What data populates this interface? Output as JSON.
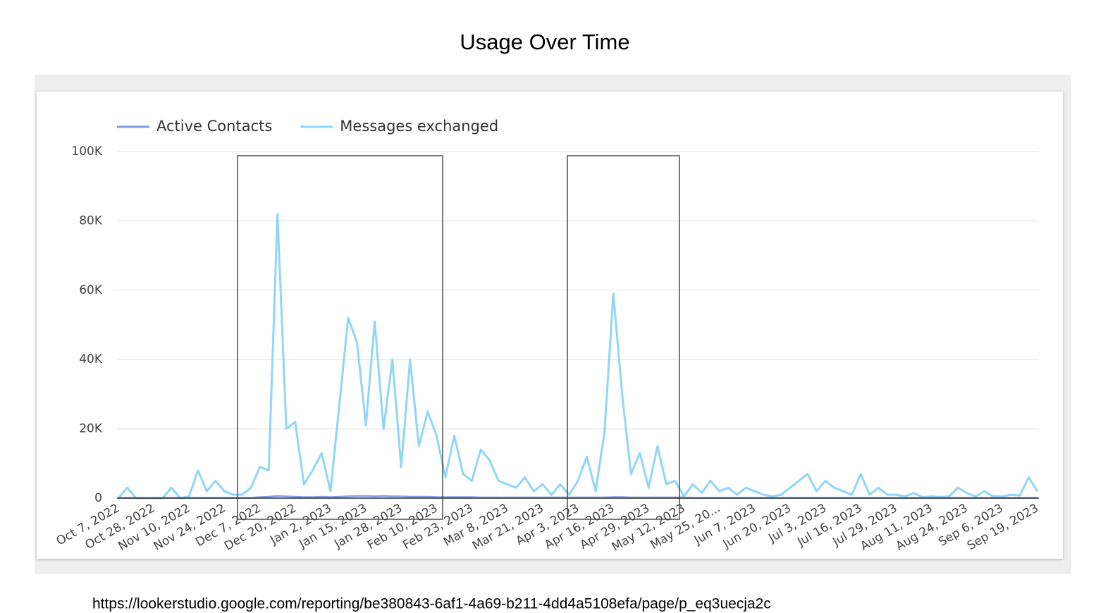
{
  "chart_data": {
    "type": "line",
    "title": "Usage Over Time",
    "source": "https://lookerstudio.google.com/reporting/be380843-6af1-4a69-b211-4dd4a5108efa/page/p_eq3uecja2c",
    "legend": "top-left",
    "grid": true,
    "ylim": [
      0,
      100000
    ],
    "yticks": [
      0,
      {
        "value": 20000,
        "label": "20K"
      },
      {
        "value": 40000,
        "label": "40K"
      },
      {
        "value": 60000,
        "label": "60K"
      },
      {
        "value": 80000,
        "label": "80K"
      },
      {
        "value": 100000,
        "label": "100K"
      }
    ],
    "categories": [
      "Oct 7, 2022",
      null,
      null,
      null,
      "Oct 28, 2022",
      null,
      null,
      null,
      "Nov 10, 2022",
      null,
      null,
      null,
      "Nov 24, 2022",
      null,
      null,
      null,
      "Dec 7, 2022",
      null,
      null,
      null,
      "Dec 20, 2022",
      null,
      null,
      null,
      "Jan 2, 2023",
      null,
      null,
      null,
      "Jan 15, 2023",
      null,
      null,
      null,
      "Jan 28, 2023",
      null,
      null,
      null,
      "Feb 10, 2023",
      null,
      null,
      null,
      "Feb 23, 2023",
      null,
      null,
      null,
      "Mar 8, 2023",
      null,
      null,
      null,
      "Mar 21, 2023",
      null,
      null,
      null,
      "Apr 3, 2023",
      null,
      null,
      null,
      "Apr 16, 2023",
      null,
      null,
      null,
      "Apr 29, 2023",
      null,
      null,
      null,
      "May 12, 2023",
      null,
      null,
      null,
      "May 25, 20...",
      null,
      null,
      null,
      "Jun 7, 2023",
      null,
      null,
      null,
      "Jun 20, 2023",
      null,
      null,
      null,
      "Jul 3, 2023",
      null,
      null,
      null,
      "Jul 16, 2023",
      null,
      null,
      null,
      "Jul 29, 2023",
      null,
      null,
      null,
      "Aug 11, 2023",
      null,
      null,
      null,
      "Aug 24, 2023",
      null,
      null,
      null,
      "Sep 6, 2023",
      null,
      null,
      null,
      "Sep 19, 2023"
    ],
    "series": [
      {
        "name": "Active Contacts",
        "color": "#7e9fe6",
        "values": [
          100,
          100,
          100,
          100,
          100,
          100,
          100,
          100,
          100,
          100,
          100,
          100,
          100,
          100,
          100,
          100,
          300,
          400,
          600,
          500,
          400,
          300,
          300,
          400,
          300,
          400,
          500,
          600,
          600,
          500,
          600,
          500,
          500,
          400,
          400,
          400,
          300,
          300,
          300,
          300,
          300,
          200,
          200,
          200,
          200,
          200,
          200,
          200,
          200,
          200,
          200,
          200,
          200,
          200,
          200,
          200,
          300,
          300,
          200,
          200,
          200,
          200,
          200,
          200,
          200,
          100,
          100,
          100,
          100,
          100,
          100,
          100,
          100,
          100,
          100,
          100,
          100,
          100,
          100,
          100,
          100,
          100,
          100,
          100,
          100,
          100,
          100,
          100,
          100,
          100,
          100,
          100,
          100,
          100,
          100,
          100,
          100,
          100,
          100,
          100,
          100,
          100,
          100,
          100,
          100
        ]
      },
      {
        "name": "Messages exchanged",
        "color": "#91d5f7",
        "values": [
          0,
          3000,
          0,
          0,
          0,
          0,
          3000,
          0,
          500,
          8000,
          2000,
          5000,
          2000,
          1000,
          1000,
          3000,
          9000,
          8000,
          82000,
          20000,
          22000,
          4000,
          8000,
          13000,
          2000,
          27000,
          52000,
          45000,
          21000,
          51000,
          20000,
          40000,
          9000,
          40000,
          15000,
          25000,
          18000,
          6000,
          18000,
          7000,
          5000,
          14000,
          11000,
          5000,
          4000,
          3000,
          6000,
          2000,
          4000,
          1000,
          4000,
          1000,
          5000,
          12000,
          2000,
          19000,
          59000,
          30000,
          7000,
          13000,
          3000,
          15000,
          4000,
          5000,
          500,
          4000,
          1500,
          5000,
          2000,
          3000,
          1000,
          3000,
          2000,
          1000,
          500,
          1000,
          3000,
          5000,
          7000,
          2000,
          5000,
          3000,
          2000,
          1000,
          7000,
          1000,
          3000,
          1000,
          1000,
          500,
          1500,
          300,
          500,
          300,
          500,
          3000,
          1500,
          500,
          2000,
          500,
          500,
          1000,
          800,
          6000,
          2000
        ]
      }
    ]
  }
}
